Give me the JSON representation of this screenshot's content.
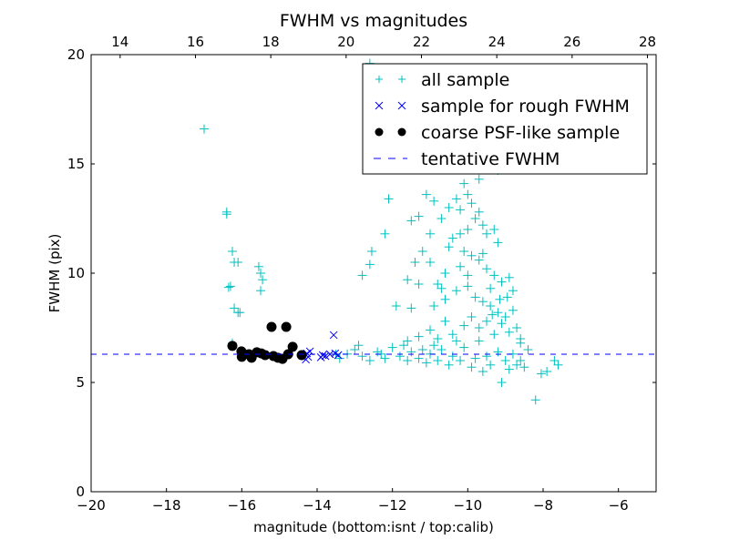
{
  "chart_data": {
    "type": "scatter",
    "title": "FWHM vs magnitudes",
    "xlabel": "magnitude (bottom:isnt / top:calib)",
    "ylabel": "FWHM (pix)",
    "xlim": [
      -20,
      -5
    ],
    "ylim": [
      0,
      20
    ],
    "xticks": [
      -20,
      -18,
      -16,
      -14,
      -12,
      -10,
      -8,
      -6
    ],
    "xtick_labels": [
      "−20",
      "−18",
      "−16",
      "−14",
      "−12",
      "−10",
      "−8",
      "−6"
    ],
    "yticks": [
      0,
      5,
      10,
      15,
      20
    ],
    "ytick_labels": [
      "0",
      "5",
      "10",
      "15",
      "20"
    ],
    "top_axis": {
      "offset_from_bottom": 33.23,
      "ticks": [
        14,
        16,
        18,
        20,
        22,
        24,
        26,
        28
      ],
      "tick_labels": [
        "14",
        "16",
        "18",
        "20",
        "22",
        "24",
        "26",
        "28"
      ]
    },
    "grid": false,
    "legend_position": "top-right",
    "series": [
      {
        "name": "all sample",
        "marker": "plus",
        "color": "#00bfbf",
        "points": [
          [
            -17.0,
            16.6
          ],
          [
            -16.4,
            12.8
          ],
          [
            -16.4,
            12.7
          ],
          [
            -16.25,
            11.0
          ],
          [
            -16.2,
            10.5
          ],
          [
            -16.1,
            10.5
          ],
          [
            -16.35,
            9.35
          ],
          [
            -16.3,
            9.4
          ],
          [
            -16.2,
            8.4
          ],
          [
            -16.1,
            8.2
          ],
          [
            -16.05,
            8.2
          ],
          [
            -16.25,
            6.8
          ],
          [
            -15.55,
            10.3
          ],
          [
            -15.5,
            10.0
          ],
          [
            -15.45,
            9.7
          ],
          [
            -15.5,
            9.2
          ],
          [
            -12.8,
            9.9
          ],
          [
            -12.6,
            10.4
          ],
          [
            -12.55,
            11.0
          ],
          [
            -12.2,
            11.8
          ],
          [
            -12.1,
            13.4
          ],
          [
            -12.6,
            19.6
          ],
          [
            -10.0,
            15.5
          ],
          [
            -10.5,
            14.9
          ],
          [
            -9.7,
            14.3
          ],
          [
            -9.2,
            14.7
          ],
          [
            -13.4,
            6.1
          ],
          [
            -13.2,
            6.3
          ],
          [
            -13.0,
            6.5
          ],
          [
            -12.8,
            6.2
          ],
          [
            -12.6,
            6.0
          ],
          [
            -12.4,
            6.4
          ],
          [
            -12.2,
            6.1
          ],
          [
            -12.0,
            6.6
          ],
          [
            -11.8,
            6.2
          ],
          [
            -11.6,
            6.0
          ],
          [
            -11.5,
            6.4
          ],
          [
            -11.3,
            6.1
          ],
          [
            -11.1,
            5.9
          ],
          [
            -11.0,
            6.3
          ],
          [
            -10.8,
            6.0
          ],
          [
            -10.7,
            6.5
          ],
          [
            -10.5,
            5.8
          ],
          [
            -10.4,
            6.2
          ],
          [
            -10.2,
            6.0
          ],
          [
            -10.1,
            6.6
          ],
          [
            -9.9,
            5.7
          ],
          [
            -9.8,
            6.1
          ],
          [
            -9.6,
            5.5
          ],
          [
            -9.5,
            6.2
          ],
          [
            -9.4,
            5.8
          ],
          [
            -9.2,
            6.4
          ],
          [
            -9.0,
            6.0
          ],
          [
            -8.9,
            5.6
          ],
          [
            -8.8,
            6.3
          ],
          [
            -8.7,
            5.8
          ],
          [
            -8.6,
            6.0
          ],
          [
            -8.5,
            5.7
          ],
          [
            -8.4,
            6.5
          ],
          [
            -8.2,
            4.2
          ],
          [
            -8.05,
            5.4
          ],
          [
            -7.9,
            5.5
          ],
          [
            -7.7,
            6.0
          ],
          [
            -7.6,
            5.8
          ],
          [
            -8.6,
            6.8
          ],
          [
            -9.1,
            5.0
          ],
          [
            -10.3,
            6.9
          ],
          [
            -11.7,
            6.7
          ],
          [
            -12.9,
            6.7
          ],
          [
            -11.2,
            6.5
          ],
          [
            -13.5,
            6.3
          ],
          [
            -12.3,
            6.3
          ],
          [
            -10.9,
            6.7
          ],
          [
            -9.7,
            6.9
          ],
          [
            -11.9,
            8.5
          ],
          [
            -11.5,
            8.4
          ],
          [
            -11.3,
            9.5
          ],
          [
            -11.6,
            9.7
          ],
          [
            -11.4,
            10.5
          ],
          [
            -11.2,
            11.0
          ],
          [
            -11.0,
            11.8
          ],
          [
            -11.5,
            12.4
          ],
          [
            -11.3,
            12.6
          ],
          [
            -11.1,
            13.6
          ],
          [
            -10.9,
            13.3
          ],
          [
            -10.7,
            12.5
          ],
          [
            -10.5,
            13.0
          ],
          [
            -10.3,
            13.4
          ],
          [
            -10.1,
            14.1
          ],
          [
            -10.0,
            13.6
          ],
          [
            -9.9,
            13.2
          ],
          [
            -9.8,
            12.5
          ],
          [
            -9.6,
            12.2
          ],
          [
            -9.5,
            11.8
          ],
          [
            -9.3,
            12.0
          ],
          [
            -9.2,
            11.4
          ],
          [
            -10.4,
            11.6
          ],
          [
            -10.2,
            11.8
          ],
          [
            -10.1,
            11.0
          ],
          [
            -9.9,
            10.8
          ],
          [
            -9.7,
            10.6
          ],
          [
            -9.5,
            10.2
          ],
          [
            -9.3,
            9.9
          ],
          [
            -9.1,
            9.6
          ],
          [
            -8.9,
            9.8
          ],
          [
            -8.8,
            9.2
          ],
          [
            -10.6,
            10.0
          ],
          [
            -10.8,
            9.5
          ],
          [
            -10.9,
            8.5
          ],
          [
            -10.6,
            8.8
          ],
          [
            -10.3,
            9.2
          ],
          [
            -10.0,
            9.9
          ],
          [
            -10.0,
            9.4
          ],
          [
            -9.8,
            8.9
          ],
          [
            -9.6,
            8.7
          ],
          [
            -9.4,
            8.5
          ],
          [
            -9.2,
            8.2
          ],
          [
            -9.0,
            8.0
          ],
          [
            -8.8,
            8.3
          ],
          [
            -8.7,
            7.5
          ],
          [
            -8.6,
            7.0
          ],
          [
            -8.9,
            7.3
          ],
          [
            -9.1,
            7.7
          ],
          [
            -9.3,
            7.2
          ],
          [
            -9.5,
            7.8
          ],
          [
            -9.7,
            7.5
          ],
          [
            -9.9,
            8.0
          ],
          [
            -10.1,
            7.6
          ],
          [
            -10.4,
            7.2
          ],
          [
            -10.6,
            7.8
          ],
          [
            -10.8,
            7.0
          ],
          [
            -11.0,
            7.4
          ],
          [
            -11.3,
            7.1
          ],
          [
            -11.6,
            6.9
          ],
          [
            -9.4,
            9.3
          ],
          [
            -9.6,
            10.9
          ],
          [
            -10.2,
            10.3
          ],
          [
            -10.5,
            11.2
          ],
          [
            -8.95,
            8.9
          ],
          [
            -9.15,
            8.8
          ],
          [
            -9.35,
            8.1
          ],
          [
            -10.0,
            12.0
          ],
          [
            -9.7,
            12.8
          ],
          [
            -10.2,
            12.9
          ],
          [
            -11.0,
            10.5
          ],
          [
            -10.7,
            9.3
          ]
        ]
      },
      {
        "name": "sample for rough FWHM",
        "marker": "x",
        "color": "#0000ff",
        "points": [
          [
            -14.27,
            6.33
          ],
          [
            -14.24,
            6.17
          ],
          [
            -14.19,
            6.42
          ],
          [
            -14.3,
            6.05
          ],
          [
            -13.85,
            6.25
          ],
          [
            -13.78,
            6.21
          ],
          [
            -13.66,
            6.29
          ],
          [
            -13.56,
            7.17
          ],
          [
            -13.52,
            6.33
          ],
          [
            -13.44,
            6.25
          ],
          [
            -13.9,
            6.15
          ]
        ]
      },
      {
        "name": "coarse PSF-like sample",
        "marker": "circle",
        "color": "#000000",
        "points": [
          [
            -16.25,
            6.67
          ],
          [
            -16.01,
            6.42
          ],
          [
            -16.0,
            6.17
          ],
          [
            -15.81,
            6.29
          ],
          [
            -15.74,
            6.13
          ],
          [
            -15.6,
            6.38
          ],
          [
            -15.48,
            6.33
          ],
          [
            -15.38,
            6.25
          ],
          [
            -15.21,
            7.54
          ],
          [
            -15.16,
            6.21
          ],
          [
            -15.04,
            6.13
          ],
          [
            -14.92,
            6.08
          ],
          [
            -14.82,
            7.54
          ],
          [
            -14.77,
            6.29
          ],
          [
            -14.65,
            6.63
          ],
          [
            -14.41,
            6.25
          ]
        ]
      },
      {
        "name": "tentative FWHM",
        "marker": "dashed-line",
        "color": "#0000ff",
        "y": 6.29
      }
    ]
  }
}
